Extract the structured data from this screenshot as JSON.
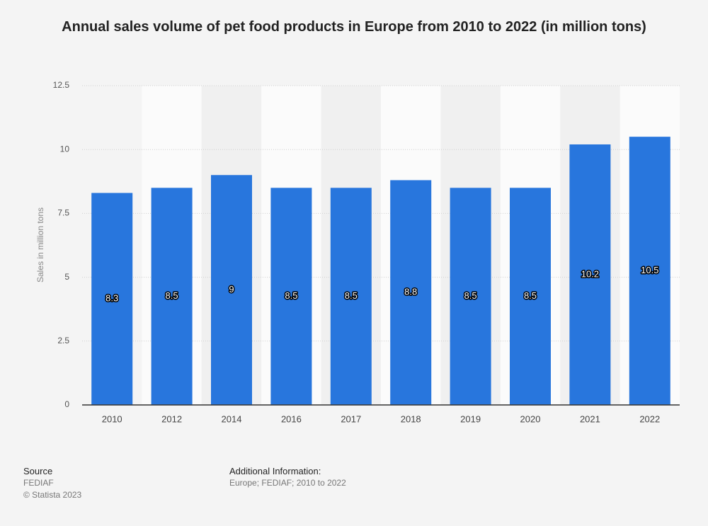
{
  "chart_data": {
    "type": "bar",
    "title": "Annual sales volume of pet food products in Europe from 2010 to 2022 (in million tons)",
    "y_label": "Sales in million tons",
    "categories": [
      "2010",
      "2012",
      "2014",
      "2016",
      "2017",
      "2018",
      "2019",
      "2020",
      "2021",
      "2022"
    ],
    "values": [
      8.3,
      8.5,
      9,
      8.5,
      8.5,
      8.8,
      8.5,
      8.5,
      10.2,
      10.5
    ],
    "color": "#2876dd",
    "ylim": [
      0,
      12.5
    ],
    "yticks": [
      0,
      2.5,
      5,
      7.5,
      10,
      12.5
    ],
    "grid": true
  },
  "footer": {
    "source_label": "Source",
    "source": "FEDIAF",
    "copyright": "© Statista 2023",
    "info_label": "Additional Information:",
    "info": "Europe; FEDIAF; 2010 to 2022"
  }
}
